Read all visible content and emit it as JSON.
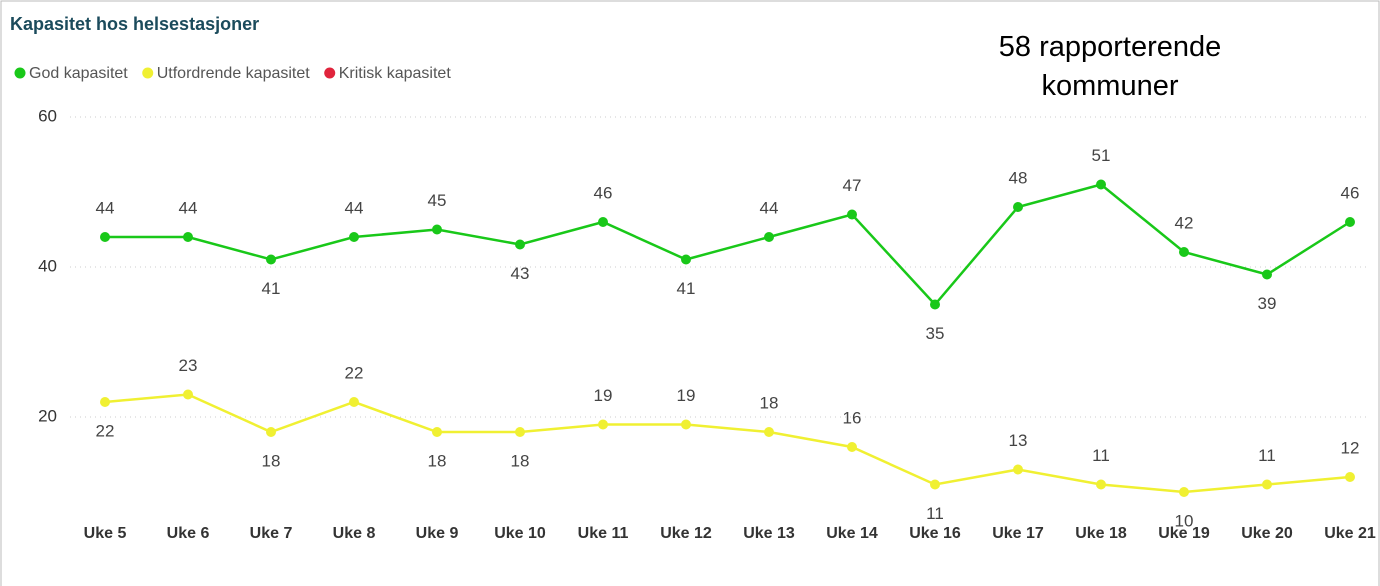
{
  "chart_data": {
    "type": "line",
    "title": "Kapasitet hos helsestasjoner",
    "annotation": "58 rapporterende kommuner",
    "categories": [
      "Uke 5",
      "Uke 6",
      "Uke 7",
      "Uke 8",
      "Uke 9",
      "Uke 10",
      "Uke 11",
      "Uke 12",
      "Uke 13",
      "Uke 14",
      "Uke 16",
      "Uke 17",
      "Uke 18",
      "Uke 19",
      "Uke 20",
      "Uke 21"
    ],
    "series": [
      {
        "name": "God kapasitet",
        "color": "#19c819",
        "values": [
          44,
          44,
          41,
          44,
          45,
          43,
          46,
          41,
          44,
          47,
          35,
          48,
          51,
          42,
          39,
          46
        ]
      },
      {
        "name": "Utfordrende kapasitet",
        "color": "#f0f032",
        "values": [
          22,
          23,
          18,
          22,
          18,
          18,
          19,
          19,
          18,
          16,
          11,
          13,
          11,
          10,
          11,
          12
        ]
      },
      {
        "name": "Kritisk kapasitet",
        "color": "#e0243c",
        "values": [
          null,
          null,
          null,
          null,
          null,
          null,
          null,
          null,
          null,
          null,
          null,
          null,
          null,
          null,
          null,
          null
        ]
      }
    ],
    "ylim": [
      8,
      60
    ],
    "yticks": [
      20,
      40,
      60
    ],
    "grid": true,
    "legend": "top-left"
  }
}
